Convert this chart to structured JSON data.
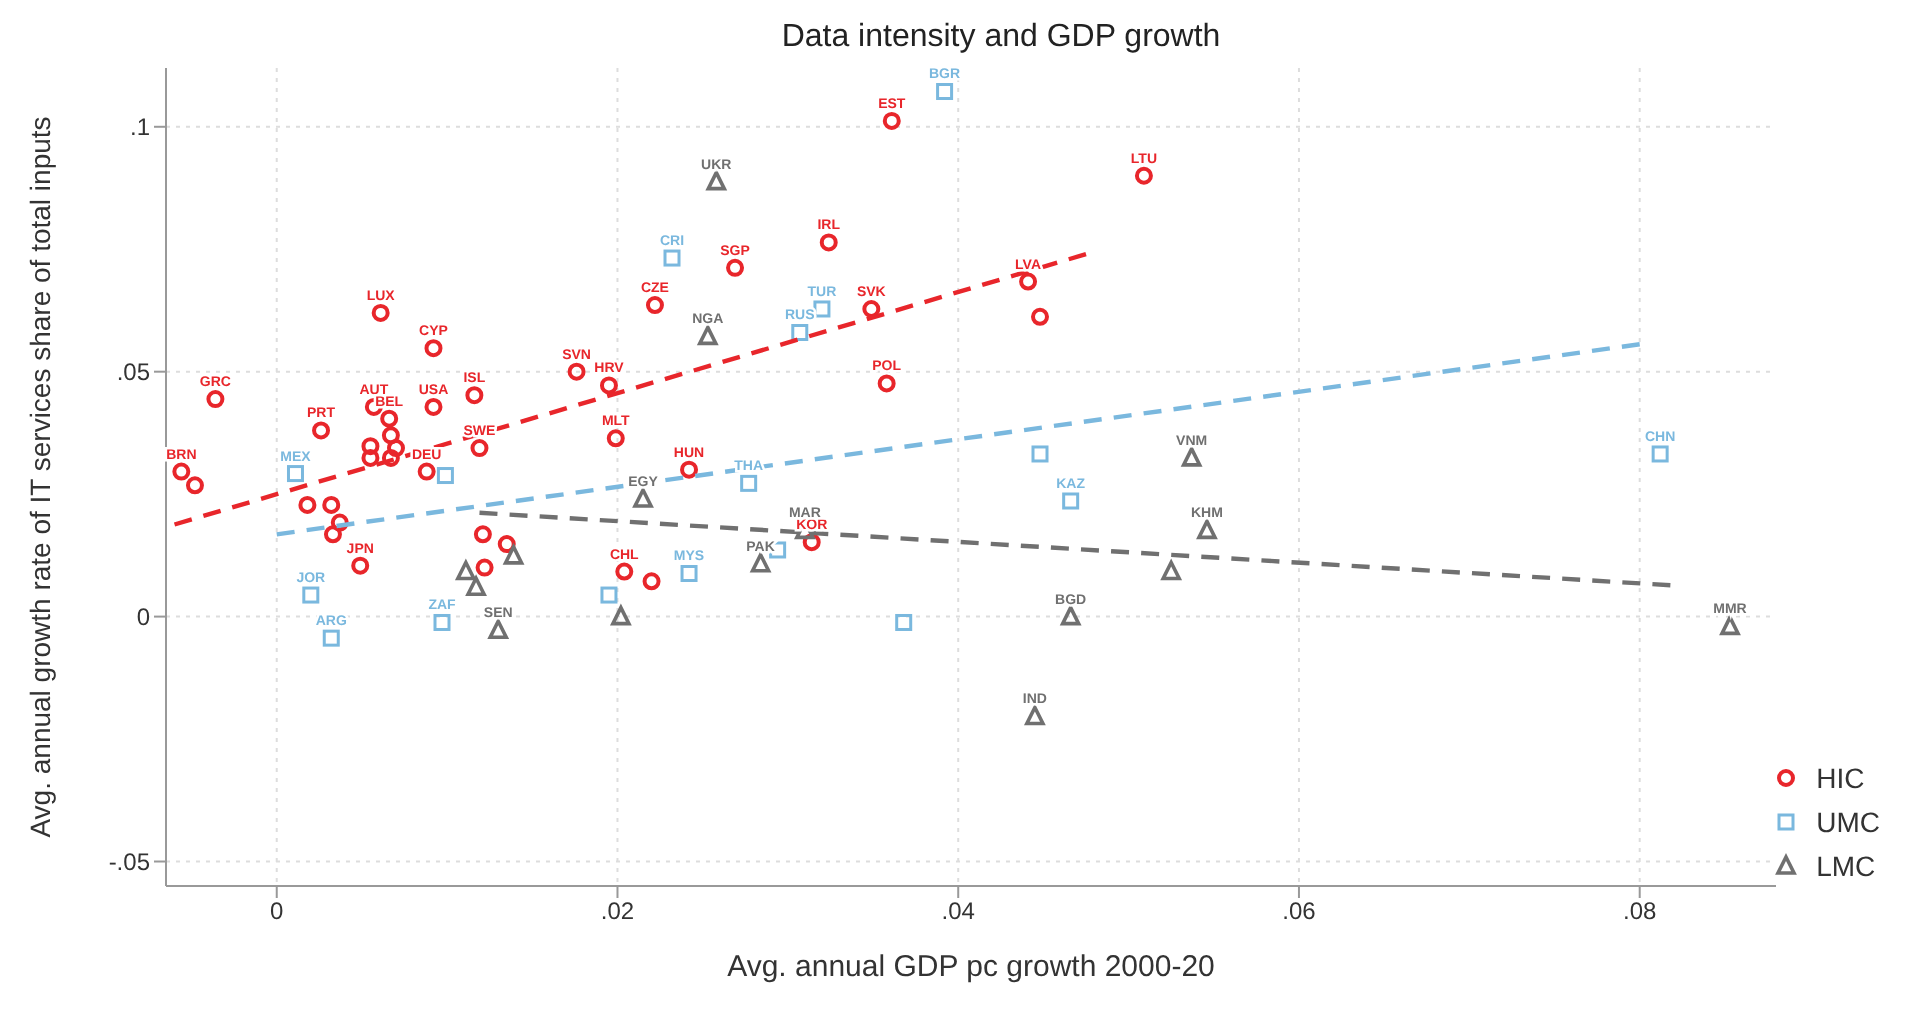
{
  "chart_data": {
    "type": "scatter",
    "title": "Data intensity and GDP growth",
    "xlabel": "Avg. annual GDP pc growth 2000-20",
    "ylabel": "Avg. annual growth rate of IT services share of total inputs",
    "xlim": [
      -0.0065,
      0.088
    ],
    "ylim": [
      -0.055,
      0.112
    ],
    "xticks": [
      0,
      {
        "value": 0.02,
        "label": ".02"
      },
      {
        "value": 0.04,
        "label": ".04"
      },
      {
        "value": 0.06,
        "label": ".06"
      },
      {
        "value": 0.08,
        "label": ".08"
      }
    ],
    "yticks": [
      {
        "value": -0.05,
        "label": "-.05"
      },
      0,
      {
        "value": 0.05,
        "label": ".05"
      },
      {
        "value": 0.1,
        "label": ".1"
      }
    ],
    "grid": true,
    "legend": "right",
    "series": [
      {
        "name": "HIC",
        "color": "#e8262b",
        "marker": "circle",
        "x": [
          -0.0056,
          -0.0048,
          -0.0036,
          0.0026,
          0.0061,
          0.0092,
          0.0057,
          0.0066,
          0.0067,
          0.007,
          0.0055,
          0.0055,
          0.0067,
          0.0092,
          0.0116,
          0.0088,
          0.0119,
          0.0018,
          0.0032,
          0.0037,
          0.0033,
          0.0049,
          0.0121,
          0.0135,
          0.0122,
          0.0204,
          0.022,
          0.0242,
          0.0199,
          0.0176,
          0.0195,
          0.0222,
          0.0269,
          0.0324,
          0.0349,
          0.0361,
          0.0358,
          0.0441,
          0.0448,
          0.0509,
          0.0314
        ],
        "values": [
          0.0296,
          0.0268,
          0.0444,
          0.038,
          0.062,
          0.0548,
          0.0428,
          0.0404,
          0.037,
          0.0344,
          0.0348,
          0.0324,
          0.0324,
          0.0428,
          0.0452,
          0.0296,
          0.0344,
          0.0228,
          0.0228,
          0.0192,
          0.0168,
          0.0104,
          0.0168,
          0.0148,
          0.01,
          0.0092,
          0.0072,
          0.03,
          0.0364,
          0.05,
          0.0472,
          0.0636,
          0.0712,
          0.0764,
          0.0628,
          0.1012,
          0.0476,
          0.0684,
          0.0612,
          0.09,
          0.0152
        ],
        "value_labels": [
          "BRN",
          null,
          "GRC",
          "PRT",
          "LUX",
          "CYP",
          "AUT",
          "BEL",
          null,
          null,
          null,
          null,
          null,
          "USA",
          "ISL",
          "DEU",
          "SWE",
          null,
          null,
          null,
          null,
          "JPN",
          null,
          null,
          null,
          "CHL",
          null,
          "HUN",
          "MLT",
          "SVN",
          "HRV",
          "CZE",
          "SGP",
          "IRL",
          "SVK",
          "EST",
          "POL",
          "LVA",
          null,
          "LTU",
          "KOR"
        ]
      },
      {
        "name": "UMC",
        "color": "#7ab8de",
        "marker": "square",
        "x": [
          0.0392,
          0.0232,
          0.032,
          0.0307,
          0.0011,
          0.0099,
          0.0277,
          0.0242,
          0.0195,
          0.002,
          0.0032,
          0.0097,
          0.0368,
          0.0294,
          0.0448,
          0.0466,
          0.0812
        ],
        "values": [
          0.1072,
          0.0732,
          0.0628,
          0.058,
          0.0292,
          0.0288,
          0.0272,
          0.0088,
          0.0044,
          0.0044,
          -0.0044,
          -0.0012,
          -0.0012,
          0.0136,
          0.0332,
          0.0236,
          0.0332
        ],
        "value_labels": [
          "BGR",
          "CRI",
          "TUR",
          "RUS",
          "MEX",
          null,
          "THA",
          "MYS",
          null,
          "JOR",
          "ARG",
          "ZAF",
          null,
          null,
          null,
          "KAZ",
          "CHN"
        ]
      },
      {
        "name": "LMC",
        "color": "#707070",
        "marker": "triangle",
        "x": [
          0.0258,
          0.0253,
          0.0215,
          0.0111,
          0.0117,
          0.0139,
          0.013,
          0.0202,
          0.0284,
          0.031,
          0.0537,
          0.0546,
          0.0525,
          0.0466,
          0.0445,
          0.0853
        ],
        "values": [
          0.0888,
          0.0572,
          0.024,
          0.0092,
          0.006,
          0.0124,
          -0.0028,
          0,
          0.0108,
          0.0176,
          0.0324,
          0.0176,
          0.0092,
          0,
          -0.0204,
          -0.002
        ],
        "value_labels": [
          "UKR",
          "NGA",
          "EGY",
          null,
          null,
          null,
          "SEN",
          null,
          "PAK",
          "MAR",
          "VNM",
          "KHM",
          null,
          "BGD",
          "IND",
          "MMR"
        ]
      },
      {
        "type": "line",
        "color": "#e8262b",
        "line_style": "dashed",
        "marker": "none",
        "x": [
          -0.006,
          0.0475
        ],
        "values": [
          0.0188,
          0.074
        ]
      },
      {
        "type": "line",
        "color": "#7ab8de",
        "line_style": "dashed",
        "marker": "none",
        "x": [
          0,
          0.08
        ],
        "values": [
          0.0168,
          0.0556
        ]
      },
      {
        "type": "line",
        "color": "#707070",
        "line_style": "dashed",
        "marker": "none",
        "x": [
          0.0119,
          0.0818
        ],
        "values": [
          0.0212,
          0.0064
        ]
      }
    ]
  }
}
